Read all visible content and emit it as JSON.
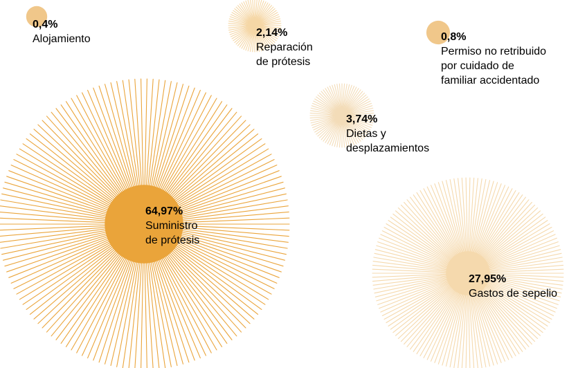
{
  "chart_data": {
    "type": "bubble",
    "title": "",
    "unit": "%",
    "series": [
      {
        "name": "Alojamiento",
        "lines": [
          "Alojamiento"
        ],
        "value": 0.4,
        "value_label": "0,4%",
        "color": "#f0c78a"
      },
      {
        "name": "Reparación de prótesis",
        "lines": [
          "Reparación",
          "de prótesis"
        ],
        "value": 2.14,
        "value_label": "2,14%",
        "color": "#f5d7a6"
      },
      {
        "name": "Permiso no retribuido por cuidado de familiar accidentado",
        "lines": [
          "Permiso no retribuido",
          "por cuidado de",
          "familiar accidentado"
        ],
        "value": 0.8,
        "value_label": "0,8%",
        "color": "#f0c78a"
      },
      {
        "name": "Dietas y desplazamientos",
        "lines": [
          "Dietas y",
          "desplazamientos"
        ],
        "value": 3.74,
        "value_label": "3,74%",
        "color": "#f3dcb8"
      },
      {
        "name": "Suministro de prótesis",
        "lines": [
          "Suministro",
          "de prótesis"
        ],
        "value": 64.97,
        "value_label": "64,97%",
        "color": "#eaa43a"
      },
      {
        "name": "Gastos de sepelio",
        "lines": [
          "Gastos de sepelio"
        ],
        "value": 27.95,
        "value_label": "27,95%",
        "color": "#f5d9ad"
      }
    ]
  }
}
